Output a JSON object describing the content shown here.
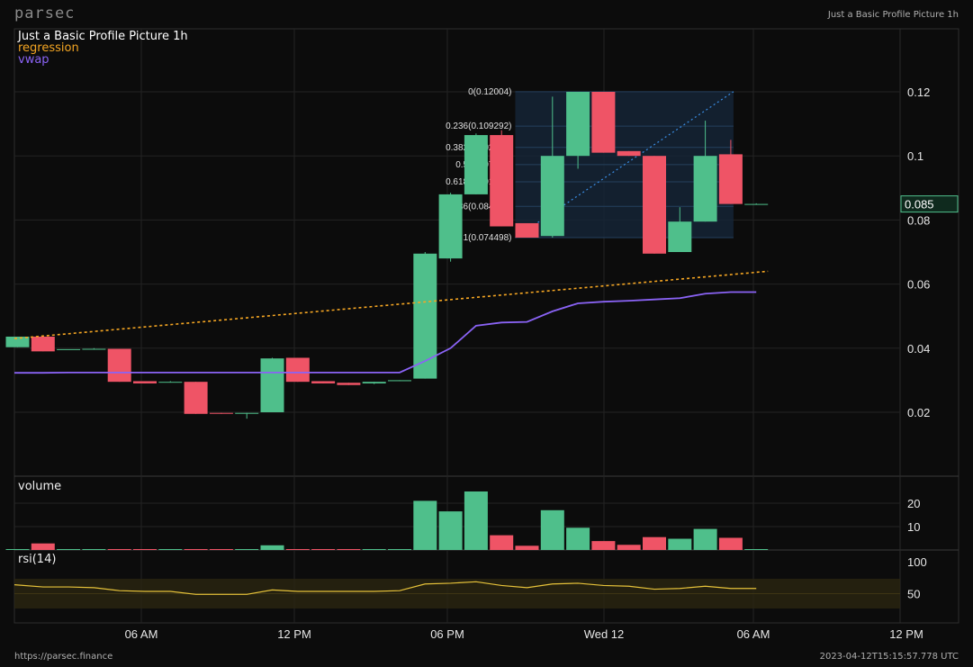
{
  "header": {
    "logo": "parsec",
    "title": "Just a Basic Profile Picture 1h"
  },
  "legend": {
    "title": "Just a Basic Profile Picture 1h",
    "regression": "regression",
    "vwap": "vwap"
  },
  "panels": {
    "volume_label": "volume",
    "rsi_label": "rsi(14)"
  },
  "price_tag": "0.085",
  "colors": {
    "up": "#4fbf8b",
    "down": "#ef5466",
    "regression": "#f5a623",
    "vwap": "#8a63f5",
    "rsi": "#e6c23a",
    "fib_box": "#152436",
    "background": "#0c0c0c",
    "grid": "#2a2a2a"
  },
  "footer": {
    "url": "https://parsec.finance",
    "timestamp": "2023-04-12T15:15:57.778 UTC"
  },
  "chart_data": {
    "type": "candlestick",
    "x_ticks": [
      "06 AM",
      "12 PM",
      "06 PM",
      "Wed 12",
      "06 AM",
      "12 PM"
    ],
    "y_ticks": [
      "0.02",
      "0.04",
      "0.06",
      "0.08",
      "0.1",
      "0.12"
    ],
    "ylim": [
      0,
      0.135
    ],
    "candles": [
      {
        "o": 0.0403,
        "h": 0.0436,
        "l": 0.0403,
        "c": 0.0436
      },
      {
        "o": 0.0436,
        "h": 0.0436,
        "l": 0.039,
        "c": 0.039
      },
      {
        "o": 0.0397,
        "h": 0.0397,
        "l": 0.0397,
        "c": 0.0397
      },
      {
        "o": 0.0398,
        "h": 0.04,
        "l": 0.0398,
        "c": 0.0398
      },
      {
        "o": 0.0398,
        "h": 0.0398,
        "l": 0.0295,
        "c": 0.0295
      },
      {
        "o": 0.0297,
        "h": 0.0297,
        "l": 0.029,
        "c": 0.029
      },
      {
        "o": 0.0295,
        "h": 0.0297,
        "l": 0.0294,
        "c": 0.0295
      },
      {
        "o": 0.0295,
        "h": 0.0295,
        "l": 0.0195,
        "c": 0.0195
      },
      {
        "o": 0.0198,
        "h": 0.0198,
        "l": 0.0195,
        "c": 0.0196
      },
      {
        "o": 0.0196,
        "h": 0.0198,
        "l": 0.018,
        "c": 0.0198
      },
      {
        "o": 0.02,
        "h": 0.037,
        "l": 0.02,
        "c": 0.0368
      },
      {
        "o": 0.037,
        "h": 0.037,
        "l": 0.0295,
        "c": 0.0295
      },
      {
        "o": 0.0297,
        "h": 0.0297,
        "l": 0.029,
        "c": 0.029
      },
      {
        "o": 0.0292,
        "h": 0.0292,
        "l": 0.0285,
        "c": 0.0285
      },
      {
        "o": 0.029,
        "h": 0.0295,
        "l": 0.0288,
        "c": 0.0295
      },
      {
        "o": 0.0297,
        "h": 0.03,
        "l": 0.0297,
        "c": 0.03
      },
      {
        "o": 0.0305,
        "h": 0.07,
        "l": 0.0305,
        "c": 0.0695
      },
      {
        "o": 0.068,
        "h": 0.0885,
        "l": 0.067,
        "c": 0.088
      },
      {
        "o": 0.088,
        "h": 0.107,
        "l": 0.088,
        "c": 0.1065
      },
      {
        "o": 0.1065,
        "h": 0.108,
        "l": 0.078,
        "c": 0.078
      },
      {
        "o": 0.079,
        "h": 0.079,
        "l": 0.0745,
        "c": 0.0745
      },
      {
        "o": 0.075,
        "h": 0.1185,
        "l": 0.0745,
        "c": 0.1
      },
      {
        "o": 0.1,
        "h": 0.12,
        "l": 0.096,
        "c": 0.12
      },
      {
        "o": 0.12,
        "h": 0.12,
        "l": 0.101,
        "c": 0.101
      },
      {
        "o": 0.1015,
        "h": 0.1015,
        "l": 0.1,
        "c": 0.1
      },
      {
        "o": 0.1,
        "h": 0.1,
        "l": 0.0695,
        "c": 0.0695
      },
      {
        "o": 0.07,
        "h": 0.084,
        "l": 0.07,
        "c": 0.0795
      },
      {
        "o": 0.0795,
        "h": 0.111,
        "l": 0.0795,
        "c": 0.1
      },
      {
        "o": 0.1005,
        "h": 0.105,
        "l": 0.085,
        "c": 0.085
      },
      {
        "o": 0.085,
        "h": 0.0852,
        "l": 0.0848,
        "c": 0.085
      }
    ],
    "volume": [
      0.2,
      2.8,
      0.3,
      0.2,
      0.2,
      0.2,
      0.2,
      0.2,
      0.2,
      0.2,
      2.0,
      0.2,
      0.2,
      0.2,
      0.3,
      0.3,
      21,
      16.5,
      25,
      6.3,
      1.8,
      17,
      9.5,
      3.8,
      2.2,
      5.5,
      4.8,
      9,
      5.2,
      0.3
    ],
    "volume_ticks": [
      "10",
      "20"
    ],
    "rsi": [
      62,
      59,
      59,
      58,
      54,
      53,
      53,
      49,
      49,
      49,
      55,
      53,
      53,
      53,
      53,
      54,
      63,
      64,
      66,
      61,
      58,
      63,
      64,
      61,
      60,
      56,
      57,
      60,
      57,
      57
    ],
    "rsi_ticks": [
      "50",
      "100"
    ],
    "regression_line": {
      "from": 0.043,
      "to": 0.064
    },
    "vwap": [
      0.0323,
      0.0323,
      0.0324,
      0.0324,
      0.0324,
      0.0324,
      0.0324,
      0.0324,
      0.0324,
      0.0324,
      0.0324,
      0.0324,
      0.0324,
      0.0324,
      0.0324,
      0.0324,
      0.036,
      0.04,
      0.047,
      0.048,
      0.0482,
      0.0515,
      0.054,
      0.0545,
      0.0548,
      0.0552,
      0.0556,
      0.057,
      0.0575,
      0.0575
    ],
    "fibonacci": {
      "start_candle": 20,
      "end_candle": 29,
      "levels": [
        {
          "ratio": "0",
          "value": 0.12004,
          "label": "0(0.12004)"
        },
        {
          "ratio": "0.236",
          "value": 0.109292,
          "label": "0.236(0.109292)"
        },
        {
          "ratio": "0.382",
          "value": 0.102643,
          "label": "0.382(0.102643)"
        },
        {
          "ratio": "0.5",
          "value": 0.097269,
          "label": "0.5(0.097269)"
        },
        {
          "ratio": "0.618",
          "value": 0.091895,
          "label": "0.618(0.091895)"
        },
        {
          "ratio": "0.786",
          "value": 0.084244,
          "label": "0.786(0.084244)"
        },
        {
          "ratio": "1",
          "value": 0.074498,
          "label": "1(0.074498)"
        }
      ]
    }
  }
}
